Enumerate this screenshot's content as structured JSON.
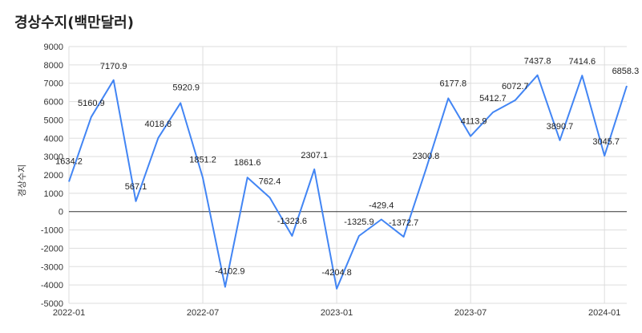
{
  "chart_data": {
    "type": "line",
    "title": "경상수지(백만달러)",
    "xlabel": "",
    "ylabel": "경상수지",
    "ylim": [
      -5000,
      9000
    ],
    "yticks": [
      9000,
      8000,
      7000,
      6000,
      5000,
      4000,
      3000,
      2000,
      1000,
      0,
      -1000,
      -2000,
      -3000,
      -4000,
      -5000
    ],
    "x_tick_labels": [
      "2022-01",
      "2022-07",
      "2023-01",
      "2023-07",
      "2024-01"
    ],
    "x_tick_index": [
      0,
      6,
      12,
      18,
      24
    ],
    "grid": true,
    "series_color": "#4285f4",
    "series": [
      {
        "name": "경상수지",
        "x": [
          "2022-01",
          "2022-02",
          "2022-03",
          "2022-04",
          "2022-05",
          "2022-06",
          "2022-07",
          "2022-08",
          "2022-09",
          "2022-10",
          "2022-11",
          "2022-12",
          "2023-01",
          "2023-02",
          "2023-03",
          "2023-04",
          "2023-05",
          "2023-06",
          "2023-07",
          "2023-08",
          "2023-09",
          "2023-10",
          "2023-11",
          "2023-12",
          "2024-01",
          "2024-02"
        ],
        "values": [
          1634.2,
          5160.9,
          7170.9,
          567.1,
          4018.8,
          5920.9,
          1851.2,
          -4102.9,
          1861.6,
          762.4,
          -1323.6,
          2307.1,
          -4204.8,
          -1325.9,
          -429.4,
          -1372.7,
          2300.8,
          6177.8,
          4113.9,
          5412.7,
          6072.7,
          7437.8,
          3890.7,
          7414.6,
          3045.7,
          6858.3
        ],
        "labels": [
          "1634.2",
          "5160.9",
          "7170.9",
          "567.1",
          "4018.8",
          "5920.9",
          "1851.2",
          "-4102.9",
          "1861.6",
          "762.4",
          "-1323.6",
          "2307.1",
          "-4204.8",
          "-1325.9",
          "-429.4",
          "-1372.7",
          "2300.8",
          "6177.8",
          "4113.9",
          "5412.7",
          "6072.7",
          "7437.8",
          "3890.7",
          "7414.6",
          "3045.7",
          "6858.3"
        ]
      }
    ]
  }
}
